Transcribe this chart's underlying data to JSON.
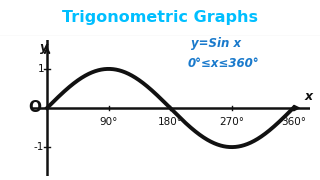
{
  "title": "Trigonometric Graphs",
  "title_color": "#00bfff",
  "title_fontsize": 11.5,
  "background_color": "#ffffff",
  "curve_color": "#111111",
  "curve_linewidth": 2.8,
  "annotation_color": "#1a7acc",
  "annotation_text1": "y=Sin x",
  "annotation_text2": "0°≤x≤360°",
  "annotation_fontsize": 8.5,
  "xlim": [
    -22,
    385
  ],
  "ylim": [
    -1.75,
    1.75
  ],
  "xticks": [
    90,
    180,
    270,
    360
  ],
  "xticklabels": [
    "90°",
    "180°",
    "270°",
    "360°"
  ],
  "yticks": [
    -1,
    1
  ],
  "yticklabels": [
    "-1",
    "1"
  ],
  "axis_color": "#111111",
  "tick_fontsize": 7.5,
  "origin_label": "O",
  "ylabel_label": "y",
  "xlabel_label": "x",
  "title_bar_height": 0.2
}
